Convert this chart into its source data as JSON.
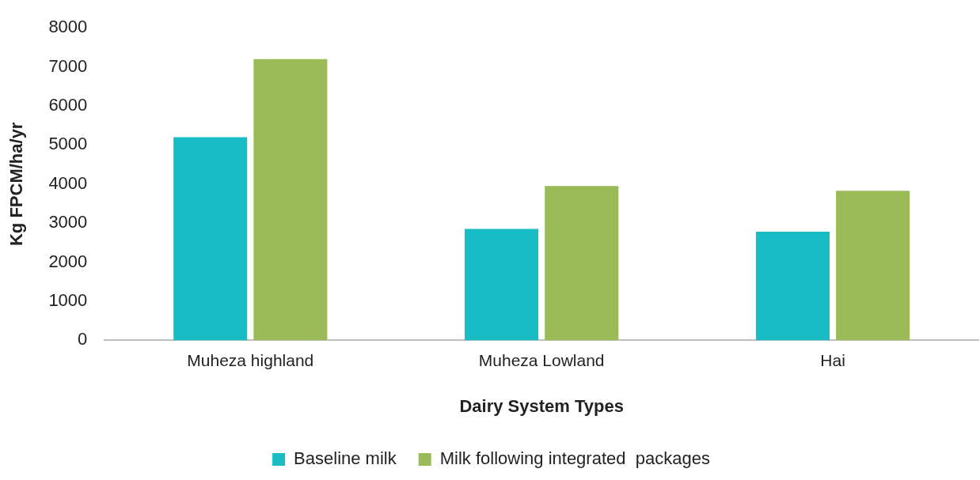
{
  "chart_data": {
    "type": "bar",
    "xlabel": "Dairy System Types",
    "ylabel": "Kg FPCM/ha/yr",
    "categories": [
      "Muheza highland",
      "Muheza Lowland",
      "Hai"
    ],
    "series": [
      {
        "name": "Baseline milk",
        "color": "#17bcc4",
        "values": [
          5200,
          2850,
          2780
        ]
      },
      {
        "name": "Milk following integrated  packages",
        "color": "#9bbb59",
        "values": [
          7200,
          3950,
          3830
        ]
      }
    ],
    "ylim": [
      0,
      8000
    ],
    "yticks": [
      0,
      1000,
      2000,
      3000,
      4000,
      5000,
      6000,
      7000,
      8000
    ],
    "grid": false,
    "legend": "bottom"
  }
}
